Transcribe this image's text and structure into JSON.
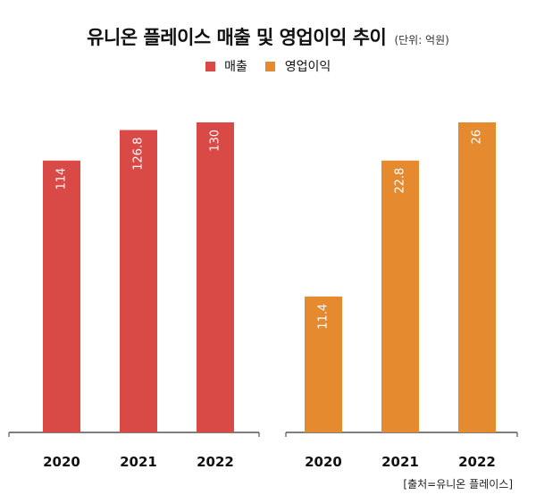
{
  "title": "유니온 플레이스 매출 및 영업이익 추이",
  "unit": "(단위: 억원)",
  "source": "[출처=유니온 플레이스]",
  "legend": [
    {
      "label": "매출",
      "color": "#d94a47"
    },
    {
      "label": "영업이익",
      "color": "#e58a2e"
    }
  ],
  "chart_data": [
    {
      "type": "bar",
      "series": [
        {
          "name": "매출",
          "values": [
            114,
            126.8,
            130
          ]
        }
      ],
      "categories": [
        "2020",
        "2021",
        "2022"
      ],
      "value_labels": [
        "114",
        "126.8",
        "130"
      ],
      "color": "#d94a47",
      "value_label_orientation": "vertical"
    },
    {
      "type": "bar",
      "series": [
        {
          "name": "영업이익",
          "values": [
            11.4,
            22.8,
            26
          ]
        }
      ],
      "categories": [
        "2020",
        "2021",
        "2022"
      ],
      "value_labels": [
        "11.4",
        "22.8",
        "26"
      ],
      "color": "#e58a2e",
      "value_label_orientation": "vertical"
    }
  ]
}
